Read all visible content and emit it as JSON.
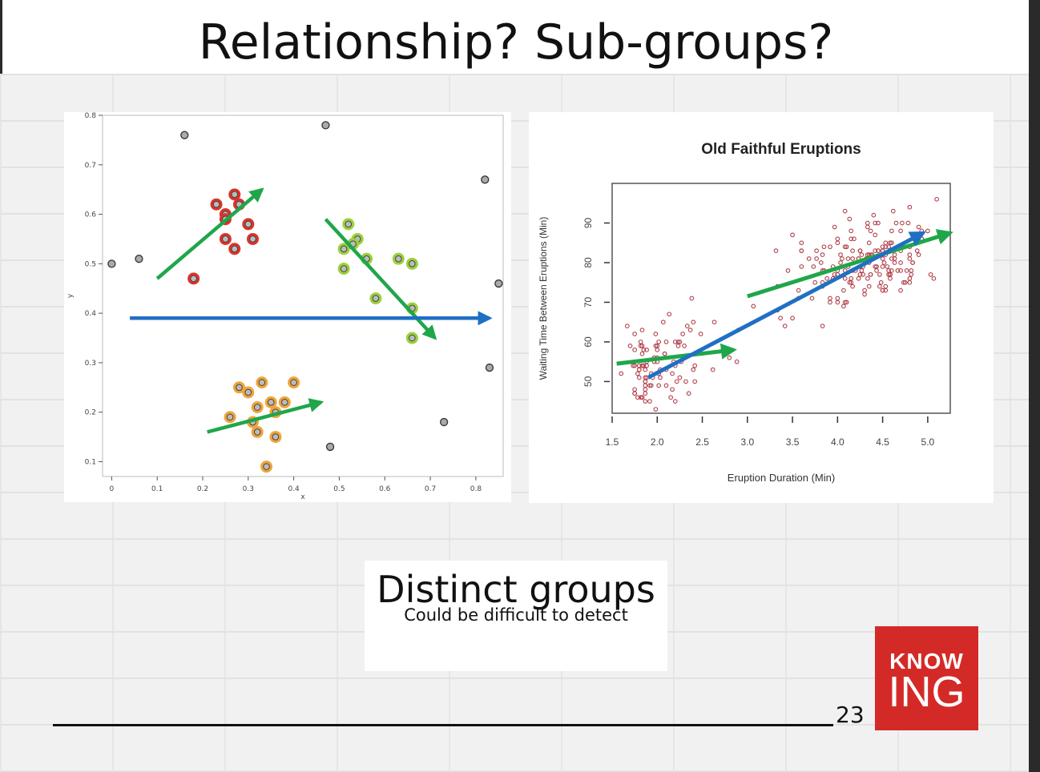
{
  "slide": {
    "title": "Relationship?   Sub-groups?",
    "caption_title": "Distinct groups",
    "caption_subtitle": "Could be difficult to detect",
    "logo_top": "KNOW",
    "logo_bottom": "ING",
    "page_number": "23"
  },
  "colors": {
    "logo_red": "#d42a27",
    "green_arrow": "#1fa64a",
    "blue_arrow": "#1f6fc4",
    "red_group": "#d9342b",
    "green_group": "#9bd13a",
    "orange_group": "#f0a43a",
    "gray_point": "#888888",
    "faithful_points": "#b0404a"
  },
  "chart_data": [
    {
      "type": "scatter",
      "title": "",
      "xlabel": "x",
      "ylabel": "y",
      "xlim": [
        -0.02,
        0.86
      ],
      "ylim": [
        0.07,
        0.8
      ],
      "xticks": [
        "0",
        "0.1",
        "0.2",
        "0.3",
        "0.4",
        "0.5",
        "0.6",
        "0.7",
        "0.8"
      ],
      "yticks": [
        "0.1",
        "0.2",
        "0.3",
        "0.4",
        "0.5",
        "0.6",
        "0.7",
        "0.8"
      ],
      "series": [
        {
          "group": "red",
          "color": "#d9342b",
          "points": [
            [
              0.23,
              0.62
            ],
            [
              0.27,
              0.64
            ],
            [
              0.28,
              0.62
            ],
            [
              0.25,
              0.6
            ],
            [
              0.25,
              0.59
            ],
            [
              0.3,
              0.58
            ],
            [
              0.25,
              0.55
            ],
            [
              0.31,
              0.55
            ],
            [
              0.27,
              0.53
            ],
            [
              0.18,
              0.47
            ]
          ]
        },
        {
          "group": "green",
          "color": "#9bd13a",
          "points": [
            [
              0.52,
              0.58
            ],
            [
              0.54,
              0.55
            ],
            [
              0.53,
              0.54
            ],
            [
              0.51,
              0.53
            ],
            [
              0.56,
              0.51
            ],
            [
              0.63,
              0.51
            ],
            [
              0.66,
              0.5
            ],
            [
              0.51,
              0.49
            ],
            [
              0.58,
              0.43
            ],
            [
              0.66,
              0.41
            ],
            [
              0.66,
              0.35
            ]
          ]
        },
        {
          "group": "orange",
          "color": "#f0a43a",
          "points": [
            [
              0.33,
              0.26
            ],
            [
              0.4,
              0.26
            ],
            [
              0.28,
              0.25
            ],
            [
              0.3,
              0.24
            ],
            [
              0.35,
              0.22
            ],
            [
              0.38,
              0.22
            ],
            [
              0.32,
              0.21
            ],
            [
              0.36,
              0.2
            ],
            [
              0.26,
              0.19
            ],
            [
              0.31,
              0.18
            ],
            [
              0.32,
              0.16
            ],
            [
              0.36,
              0.15
            ],
            [
              0.34,
              0.09
            ]
          ]
        },
        {
          "group": "outliers",
          "color": "#888888",
          "points": [
            [
              0.16,
              0.76
            ],
            [
              0.47,
              0.78
            ],
            [
              0.82,
              0.67
            ],
            [
              0.06,
              0.51
            ],
            [
              0,
              0.5
            ],
            [
              0.85,
              0.46
            ],
            [
              0.83,
              0.29
            ],
            [
              0.73,
              0.18
            ],
            [
              0.48,
              0.13
            ]
          ]
        }
      ],
      "arrows": [
        {
          "color": "green",
          "from": [
            0.1,
            0.47
          ],
          "to": [
            0.33,
            0.65
          ]
        },
        {
          "color": "green",
          "from": [
            0.47,
            0.59
          ],
          "to": [
            0.71,
            0.35
          ]
        },
        {
          "color": "green",
          "from": [
            0.21,
            0.16
          ],
          "to": [
            0.46,
            0.22
          ]
        },
        {
          "color": "blue",
          "from": [
            0.04,
            0.39
          ],
          "to": [
            0.83,
            0.39
          ]
        }
      ]
    },
    {
      "type": "scatter",
      "title": "Old Faithful Eruptions",
      "xlabel": "Eruption Duration (Min)",
      "ylabel": "Waiting Time Between Eruptions (Min)",
      "xlim": [
        1.5,
        5.25
      ],
      "ylim": [
        42,
        100
      ],
      "xticks": [
        "1.5",
        "2.0",
        "2.5",
        "3.0",
        "3.5",
        "4.0",
        "4.5",
        "5.0"
      ],
      "yticks": [
        "50",
        "60",
        "70",
        "80",
        "90"
      ],
      "x": [
        3.6,
        1.8,
        3.333,
        2.283,
        4.533,
        2.883,
        4.7,
        3.6,
        1.95,
        4.35,
        1.833,
        3.917,
        4.2,
        1.75,
        4.7,
        2.167,
        1.75,
        4.8,
        1.6,
        4.25,
        1.8,
        1.75,
        3.45,
        3.067,
        4.533,
        3.6,
        1.967,
        4.083,
        3.85,
        4.433,
        4.3,
        4.467,
        3.367,
        4.033,
        3.833,
        2.017,
        1.867,
        4.833,
        1.833,
        4.783,
        4.35,
        1.883,
        4.567,
        1.75,
        4.533,
        3.317,
        3.833,
        2.1,
        4.633,
        2,
        4.8,
        4.716,
        1.833,
        4.833,
        1.733,
        4.883,
        3.717,
        1.667,
        4.567,
        4.317,
        2.233,
        4.5,
        1.75,
        4.8,
        1.817,
        4.4,
        4.167,
        4.7,
        2.067,
        4.7,
        4.033,
        1.967,
        4.5,
        4,
        1.983,
        5.067,
        2.017,
        4.567,
        3.883,
        3.6,
        4.133,
        4.333,
        4.1,
        2.633,
        4.067,
        4.933,
        3.95,
        4.517,
        2.167,
        4,
        2.2,
        4.333,
        1.867,
        4.817,
        1.833,
        4.3,
        4.667,
        3.75,
        1.867,
        4.9,
        2.483,
        4.367,
        2.1,
        4.5,
        4.05,
        1.867,
        4.7,
        1.783,
        4.85,
        3.683,
        4.733,
        2.3,
        4.9,
        4.417,
        1.7,
        4.633,
        2.317,
        4.6,
        1.817,
        4.417,
        2.617,
        4.067,
        4.25,
        1.967,
        4.6,
        3.767,
        1.917,
        4.5,
        2.267,
        4.65,
        1.867,
        4.167,
        2.8,
        4.333,
        1.833,
        4.383,
        1.883,
        4.933,
        2.033,
        3.733,
        4.233,
        2.233,
        4.533,
        4.817,
        4.333,
        1.983,
        4.633,
        2.017,
        5.1,
        1.8,
        5.033,
        4,
        2.4,
        4.6,
        3.567,
        4,
        4.5,
        4.083,
        1.8,
        3.967,
        2.2,
        4.15,
        2,
        3.833,
        3.5,
        4.583,
        2.367,
        5,
        1.933,
        4.617,
        1.917,
        2.083,
        4.583,
        3.333,
        4.167,
        4.333,
        4.5,
        2.417,
        4,
        4.167,
        1.883,
        4.583,
        4.25,
        3.767,
        2.033,
        4.433,
        4.083,
        1.833,
        4.417,
        2.183,
        4.8,
        1.833,
        4.8,
        4.1,
        3.966,
        4.233,
        3.5,
        4.366,
        2.25,
        4.667,
        2.1,
        4.35,
        4.133,
        1.867,
        4.6,
        1.783,
        4.367,
        3.85,
        1.933,
        4.5,
        2.383,
        4.7,
        1.867,
        3.833,
        3.417,
        4.233,
        2.4,
        4.8,
        2,
        4.15,
        1.867,
        4.267,
        1.75,
        4.483,
        4,
        4.117,
        4.083,
        4.267,
        3.917,
        4.55,
        4.083,
        2.417,
        4.183,
        2.217,
        4.45,
        1.883,
        1.85,
        4.283,
        3.95,
        2.333,
        4.15,
        2.35,
        4.933,
        2.9,
        4.583,
        3.833,
        2.083,
        4.367,
        2.133,
        4.35,
        2.2,
        4.45,
        3.567,
        4.5,
        4.15,
        3.817,
        3.917,
        4.45,
        2,
        4.283,
        4.767,
        4.533,
        1.85,
        4.25,
        1.983,
        2.25,
        4.75,
        4.117,
        2.15,
        4.417,
        1.817,
        4.467
      ],
      "y": [
        79,
        54,
        74,
        62,
        85,
        55,
        88,
        85,
        51,
        85,
        54,
        84,
        78,
        47,
        83,
        52,
        62,
        84,
        52,
        79,
        51,
        47,
        78,
        69,
        74,
        83,
        55,
        76,
        78,
        79,
        73,
        77,
        66,
        80,
        74,
        52,
        48,
        80,
        59,
        90,
        80,
        58,
        84,
        58,
        73,
        83,
        64,
        53,
        82,
        59,
        75,
        90,
        54,
        80,
        54,
        83,
        71,
        64,
        77,
        81,
        59,
        84,
        48,
        82,
        60,
        92,
        78,
        78,
        65,
        73,
        82,
        56,
        79,
        71,
        62,
        76,
        60,
        78,
        76,
        83,
        75,
        82,
        70,
        65,
        73,
        88,
        76,
        80,
        48,
        86,
        60,
        90,
        50,
        78,
        63,
        72,
        84,
        75,
        51,
        82,
        62,
        88,
        49,
        83,
        81,
        47,
        84,
        52,
        86,
        81,
        75,
        59,
        89,
        79,
        59,
        81,
        50,
        85,
        59,
        87,
        53,
        69,
        77,
        56,
        88,
        81,
        45,
        82,
        55,
        90,
        45,
        83,
        56,
        89,
        46,
        82,
        51,
        86,
        53,
        79,
        81,
        60,
        82,
        77,
        76,
        59,
        80,
        49,
        96,
        53,
        77,
        77,
        65,
        81,
        71,
        70,
        81,
        93,
        53,
        89,
        45,
        86,
        58,
        78,
        66,
        76,
        63,
        88,
        52,
        93,
        49,
        57,
        77,
        68,
        81,
        81,
        73,
        50,
        85,
        74,
        55,
        77,
        83,
        83,
        51,
        78,
        84,
        46,
        83,
        55,
        81,
        57,
        76,
        84,
        77,
        81,
        87,
        77,
        51,
        78,
        60,
        82,
        91,
        53,
        78,
        46,
        77,
        84,
        49,
        83,
        71,
        80,
        49,
        75,
        64,
        76,
        53,
        94,
        55,
        76,
        50,
        82,
        54,
        75,
        78,
        79,
        78,
        78,
        70,
        79,
        70,
        54,
        86,
        50,
        90,
        54,
        54,
        77,
        79,
        64,
        75,
        47,
        86,
        63,
        85,
        82,
        57,
        82,
        67,
        74,
        54,
        83,
        73,
        73,
        88,
        80,
        71,
        83,
        56,
        79,
        78,
        84,
        58,
        83,
        43,
        60,
        75,
        81,
        46,
        90,
        46,
        74
      ],
      "arrows": [
        {
          "color": "green",
          "from": [
            1.55,
            54.5
          ],
          "to": [
            2.85,
            58
          ]
        },
        {
          "color": "green",
          "from": [
            3.0,
            71.5
          ],
          "to": [
            5.25,
            87.5
          ]
        },
        {
          "color": "blue",
          "from": [
            1.9,
            51
          ],
          "to": [
            4.95,
            87.5
          ]
        }
      ]
    }
  ]
}
